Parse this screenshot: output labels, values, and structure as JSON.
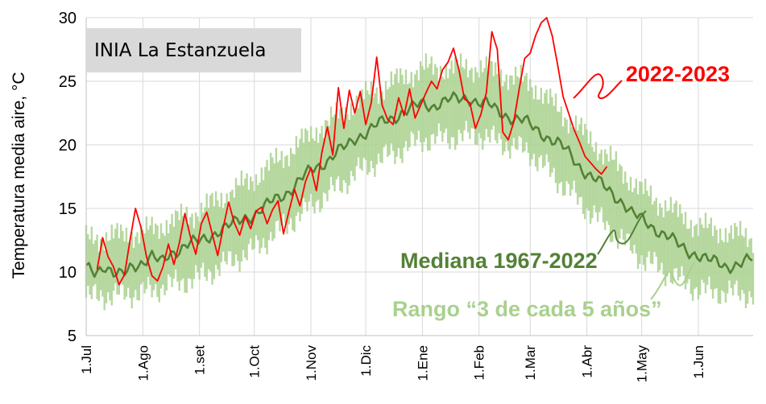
{
  "chart_data": {
    "type": "line",
    "title": "INIA La Estanzuela",
    "ylabel": "Temperatura media aire, °C",
    "xlabel": "",
    "ylim": [
      5,
      30
    ],
    "yticks": [
      5,
      10,
      15,
      20,
      25,
      30
    ],
    "xlim": [
      0,
      365
    ],
    "categories": [
      "1.Jul",
      "1.Ago",
      "1.set",
      "1.Oct",
      "1.Nov",
      "1.Dic",
      "1.Ene",
      "1.Feb",
      "1.Mar",
      "1.Abr",
      "1.May",
      "1.Jun"
    ],
    "category_days": [
      0,
      31,
      62,
      92,
      123,
      153,
      184,
      215,
      243,
      274,
      304,
      335
    ],
    "grid": true,
    "colors": {
      "median": "#538135",
      "range": "#A9D18E",
      "current": "#FF0000",
      "title_box": "#D9D9D9",
      "grid": "#D9D9D9"
    },
    "series": [
      {
        "name": "Mediana 1967-2022",
        "x": [
          0,
          5,
          10,
          15,
          20,
          25,
          31,
          36,
          41,
          46,
          51,
          56,
          62,
          67,
          72,
          77,
          82,
          87,
          92,
          97,
          102,
          107,
          112,
          117,
          123,
          128,
          133,
          138,
          143,
          148,
          153,
          158,
          163,
          168,
          173,
          178,
          184,
          189,
          194,
          199,
          204,
          209,
          215,
          220,
          225,
          230,
          235,
          240,
          243,
          248,
          253,
          258,
          263,
          268,
          274,
          279,
          284,
          289,
          294,
          299,
          304,
          309,
          314,
          319,
          324,
          329,
          335,
          340,
          345,
          350,
          355,
          360,
          365
        ],
        "values": [
          10.3,
          10.0,
          10.6,
          9.8,
          9.7,
          10.5,
          10.8,
          11.2,
          10.7,
          11.5,
          11.8,
          12.2,
          12.4,
          12.8,
          13.2,
          13.5,
          13.9,
          14.3,
          14.5,
          15.0,
          15.6,
          16.0,
          16.5,
          17.2,
          18.0,
          18.4,
          18.9,
          19.5,
          19.9,
          20.6,
          21.0,
          21.5,
          21.8,
          22.1,
          22.6,
          22.9,
          23.2,
          23.0,
          23.4,
          23.6,
          23.5,
          23.7,
          23.4,
          23.2,
          22.6,
          22.3,
          22.1,
          21.9,
          21.5,
          21.0,
          20.6,
          20.2,
          19.5,
          18.6,
          17.8,
          17.3,
          16.6,
          16.0,
          15.5,
          14.6,
          14.1,
          13.6,
          13.2,
          12.8,
          12.1,
          11.6,
          11.4,
          11.0,
          10.7,
          10.4,
          10.6,
          10.8,
          11.0
        ]
      },
      {
        "name": "2022-2023",
        "x": [
          6,
          9,
          12,
          15,
          18,
          21,
          24,
          27,
          30,
          33,
          36,
          39,
          42,
          45,
          48,
          51,
          54,
          57,
          60,
          63,
          66,
          69,
          72,
          75,
          78,
          81,
          84,
          87,
          90,
          93,
          96,
          99,
          102,
          105,
          108,
          111,
          114,
          117,
          120,
          123,
          126,
          129,
          132,
          135,
          138,
          141,
          144,
          147,
          150,
          153,
          156,
          159,
          162,
          165,
          168,
          171,
          174,
          177,
          180,
          183,
          186,
          189,
          192,
          195,
          198,
          201,
          204,
          207,
          210,
          213,
          216,
          219,
          222,
          225,
          228,
          231,
          234,
          237,
          240,
          243,
          246,
          249,
          252,
          255,
          258,
          261,
          264,
          267,
          270,
          273,
          276,
          279,
          282,
          285
        ],
        "values": [
          10.2,
          12.7,
          11.2,
          10.4,
          9.0,
          9.8,
          12.5,
          15.0,
          13.5,
          11.2,
          9.7,
          9.3,
          10.4,
          12.2,
          10.6,
          12.3,
          14.6,
          12.8,
          11.4,
          13.8,
          14.7,
          13.0,
          11.3,
          13.5,
          15.5,
          13.9,
          12.9,
          14.4,
          13.4,
          14.8,
          15.1,
          13.8,
          14.9,
          15.6,
          13.0,
          14.8,
          16.5,
          15.2,
          17.1,
          18.2,
          16.4,
          19.4,
          21.4,
          19.2,
          24.5,
          21.3,
          24.3,
          22.5,
          24.2,
          21.6,
          23.3,
          26.9,
          23.1,
          22.0,
          21.6,
          23.7,
          22.3,
          24.4,
          22.1,
          23.1,
          24.1,
          25.0,
          24.4,
          25.9,
          26.5,
          27.6,
          25.9,
          23.6,
          23.3,
          21.3,
          22.4,
          24.1,
          28.9,
          27.5,
          21.0,
          20.4,
          21.8,
          24.4,
          26.8,
          27.2,
          28.6,
          29.6,
          30.0,
          28.6,
          26.3,
          23.8,
          22.5,
          21.2,
          20.2,
          19.1,
          18.6,
          18.1,
          17.7,
          18.3
        ]
      },
      {
        "name": "Rango “3 de cada 5 años”",
        "x": [
          0,
          31,
          62,
          92,
          123,
          153,
          184,
          215,
          243,
          274,
          304,
          335,
          365
        ],
        "low": [
          8.0,
          8.4,
          9.6,
          11.8,
          15.2,
          18.3,
          20.4,
          20.8,
          19.4,
          15.0,
          11.1,
          8.6,
          8.2
        ],
        "high": [
          12.6,
          13.1,
          14.8,
          17.4,
          20.8,
          23.9,
          26.0,
          26.1,
          24.9,
          20.7,
          16.4,
          13.6,
          12.7
        ]
      }
    ],
    "annotations": {
      "current_label": "2022-2023",
      "median_label": "Mediana 1967-2022",
      "range_label": "Rango “3 de cada 5 años”"
    }
  }
}
